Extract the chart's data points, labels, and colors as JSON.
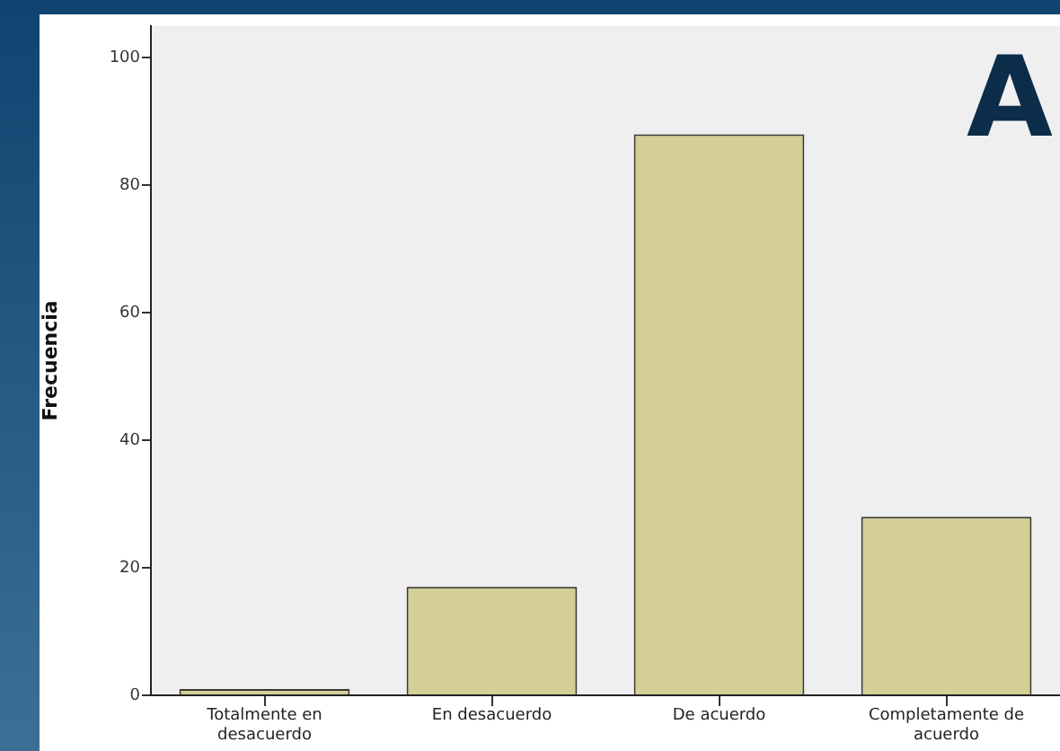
{
  "chart_data": {
    "type": "bar",
    "ylabel": "Frecuencia",
    "categories": [
      "Totalmente en desacuerdo",
      "En desacuerdo",
      "De acuerdo",
      "Completamente de acuerdo"
    ],
    "values": [
      1,
      17,
      88,
      28
    ],
    "color": "#d3cf96",
    "ylim": [
      0,
      105
    ],
    "yticks": [
      0,
      20,
      40,
      60,
      80,
      100
    ],
    "grid": false,
    "legend": false,
    "annotations": [
      "A"
    ]
  }
}
